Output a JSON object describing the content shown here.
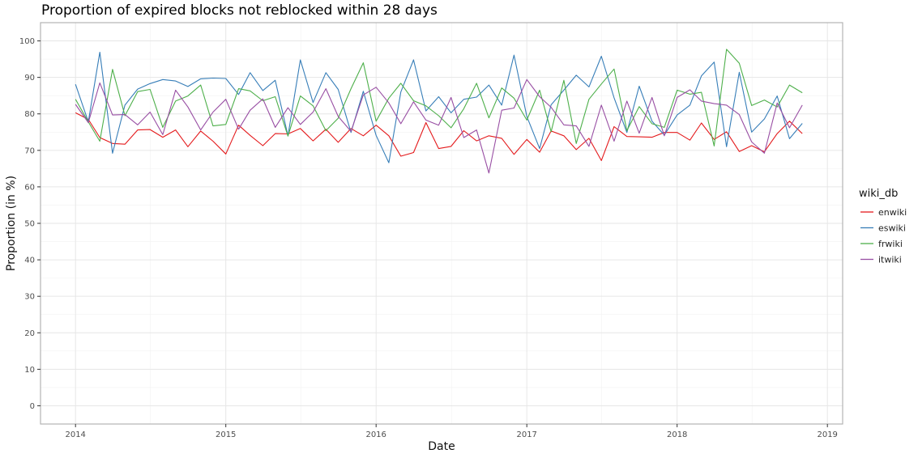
{
  "chart_data": {
    "type": "line",
    "title": "Proportion of expired blocks not reblocked within 28 days",
    "xlabel": "Date",
    "ylabel": "Proportion (in %)",
    "legend_title": "wiki_db",
    "legend_position": "right",
    "grid": true,
    "xlim": [
      "2013-10-08",
      "2019-02-07"
    ],
    "ylim": [
      -5,
      105
    ],
    "x_ticks": [
      "2014",
      "2015",
      "2016",
      "2017",
      "2018",
      "2019"
    ],
    "y_ticks": [
      0,
      10,
      20,
      30,
      40,
      50,
      60,
      70,
      80,
      90,
      100
    ],
    "x": [
      "2014-01",
      "2014-02",
      "2014-03",
      "2014-04",
      "2014-05",
      "2014-06",
      "2014-07",
      "2014-08",
      "2014-09",
      "2014-10",
      "2014-11",
      "2014-12",
      "2015-01",
      "2015-02",
      "2015-03",
      "2015-04",
      "2015-05",
      "2015-06",
      "2015-07",
      "2015-08",
      "2015-09",
      "2015-10",
      "2015-11",
      "2015-12",
      "2016-01",
      "2016-02",
      "2016-03",
      "2016-04",
      "2016-05",
      "2016-06",
      "2016-07",
      "2016-08",
      "2016-09",
      "2016-10",
      "2016-11",
      "2016-12",
      "2017-01",
      "2017-02",
      "2017-03",
      "2017-04",
      "2017-05",
      "2017-06",
      "2017-07",
      "2017-08",
      "2017-09",
      "2017-10",
      "2017-11",
      "2017-12",
      "2018-01",
      "2018-02",
      "2018-03",
      "2018-04",
      "2018-05",
      "2018-06",
      "2018-07",
      "2018-08",
      "2018-09",
      "2018-10",
      "2018-11"
    ],
    "series": [
      {
        "name": "enwiki",
        "color": "#e41a1c",
        "values": [
          80.3,
          78.5,
          73.5,
          71.9,
          71.7,
          75.6,
          75.7,
          73.6,
          75.6,
          71.0,
          75.3,
          72.5,
          69.0,
          76.9,
          74.1,
          71.3,
          74.6,
          74.5,
          76.0,
          72.6,
          75.8,
          72.2,
          76.0,
          74.0,
          76.9,
          74.0,
          68.4,
          69.4,
          77.6,
          70.5,
          71.1,
          75.4,
          72.6,
          74.0,
          73.3,
          68.9,
          73.0,
          69.5,
          75.3,
          74.0,
          70.2,
          73.3,
          67.2,
          76.5,
          73.8,
          73.7,
          73.6,
          74.9,
          74.9,
          72.8,
          77.5,
          73.0,
          75.1,
          69.7,
          71.3,
          69.6,
          74.6,
          78.0,
          74.6
        ]
      },
      {
        "name": "eswiki",
        "color": "#377eb8",
        "values": [
          88.1,
          77.8,
          96.9,
          69.2,
          82.4,
          86.8,
          88.3,
          89.4,
          89.0,
          87.5,
          89.6,
          89.8,
          89.7,
          85.3,
          91.3,
          86.4,
          89.2,
          74.0,
          94.8,
          83.1,
          91.3,
          86.7,
          74.9,
          86.2,
          74.1,
          66.6,
          86.0,
          94.8,
          80.8,
          84.7,
          80.3,
          84.0,
          84.6,
          87.9,
          82.4,
          96.1,
          79.3,
          70.5,
          82.5,
          86.5,
          90.6,
          87.4,
          95.8,
          84.4,
          74.9,
          87.6,
          78.0,
          74.2,
          79.7,
          82.4,
          90.4,
          94.2,
          71.0,
          91.4,
          75.0,
          78.6,
          84.9,
          73.2,
          77.4
        ]
      },
      {
        "name": "frwiki",
        "color": "#4daf4a",
        "values": [
          84.0,
          77.8,
          72.5,
          92.2,
          79.5,
          86.1,
          86.7,
          76.3,
          83.5,
          84.9,
          87.9,
          76.7,
          77.1,
          86.9,
          86.3,
          83.6,
          84.7,
          73.9,
          84.9,
          82.2,
          75.4,
          78.8,
          86.9,
          94.0,
          78.0,
          84.3,
          88.4,
          83.6,
          82.2,
          79.5,
          76.2,
          81.4,
          88.4,
          78.9,
          87.1,
          84.3,
          78.3,
          86.5,
          75.1,
          89.2,
          71.9,
          84.0,
          88.2,
          92.3,
          75.4,
          82.0,
          77.3,
          76.3,
          86.5,
          85.4,
          85.9,
          71.2,
          97.7,
          93.9,
          82.3,
          83.8,
          81.9,
          87.9,
          85.8
        ]
      },
      {
        "name": "itwiki",
        "color": "#984ea3",
        "values": [
          82.6,
          77.6,
          88.5,
          79.7,
          79.8,
          77.0,
          80.5,
          74.3,
          86.5,
          81.9,
          75.6,
          80.5,
          84.0,
          75.8,
          81.0,
          84.1,
          76.3,
          81.7,
          77.1,
          80.5,
          86.9,
          79.3,
          75.2,
          85.2,
          87.3,
          83.0,
          77.3,
          83.3,
          78.3,
          76.9,
          84.5,
          73.5,
          75.6,
          63.8,
          81.0,
          81.6,
          89.4,
          84.7,
          81.8,
          77.0,
          76.7,
          71.1,
          82.4,
          72.5,
          83.5,
          74.7,
          84.5,
          74.0,
          84.5,
          86.6,
          83.5,
          82.8,
          82.4,
          79.8,
          72.3,
          69.2,
          83.0,
          76.2,
          82.4
        ]
      }
    ]
  }
}
